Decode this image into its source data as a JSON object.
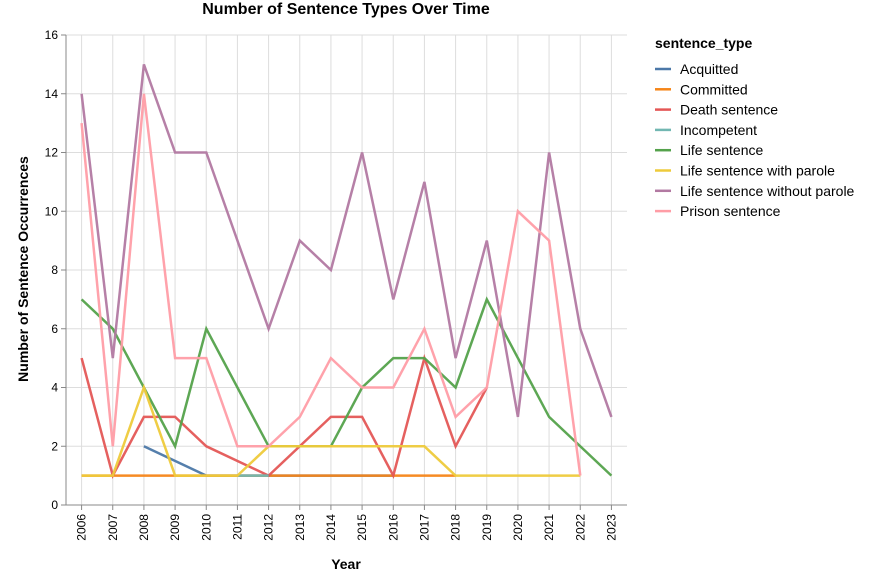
{
  "chart_data": {
    "type": "line",
    "title": "Number of Sentence Types Over Time",
    "xlabel": "Year",
    "ylabel": "Number of Sentence Occurrences",
    "x": [
      2006,
      2007,
      2008,
      2009,
      2010,
      2011,
      2012,
      2013,
      2014,
      2015,
      2016,
      2017,
      2018,
      2019,
      2020,
      2021,
      2022,
      2023
    ],
    "ylim": [
      0,
      16
    ],
    "yticks": [
      0,
      2,
      4,
      6,
      8,
      10,
      12,
      14,
      16
    ],
    "grid": true,
    "legend_title": "sentence_type",
    "legend_position": "right",
    "series": [
      {
        "name": "Acquitted",
        "color": "#4c78a8",
        "points": [
          [
            2008,
            2
          ],
          [
            2010,
            1
          ],
          [
            2011,
            1
          ],
          [
            2012,
            1
          ],
          [
            2013,
            1
          ],
          [
            2014,
            1
          ],
          [
            2015,
            1
          ],
          [
            2016,
            1
          ]
        ]
      },
      {
        "name": "Committed",
        "color": "#f58518",
        "points": [
          [
            2006,
            1
          ],
          [
            2007,
            1
          ],
          [
            2008,
            1
          ],
          [
            2009,
            1
          ],
          [
            2010,
            1
          ],
          [
            2011,
            1
          ],
          [
            2012,
            1
          ],
          [
            2013,
            1
          ],
          [
            2014,
            1
          ],
          [
            2015,
            1
          ],
          [
            2016,
            1
          ],
          [
            2017,
            1
          ],
          [
            2018,
            1
          ]
        ]
      },
      {
        "name": "Death sentence",
        "color": "#e45756",
        "points": [
          [
            2006,
            5
          ],
          [
            2007,
            1
          ],
          [
            2008,
            3
          ],
          [
            2009,
            3
          ],
          [
            2010,
            2
          ],
          [
            2012,
            1
          ],
          [
            2014,
            3
          ],
          [
            2015,
            3
          ],
          [
            2016,
            1
          ],
          [
            2017,
            5
          ],
          [
            2018,
            2
          ],
          [
            2019,
            4
          ]
        ]
      },
      {
        "name": "Incompetent",
        "color": "#72b7b2",
        "points": [
          [
            2011,
            1
          ],
          [
            2012,
            1
          ]
        ]
      },
      {
        "name": "Life sentence",
        "color": "#54a24b",
        "points": [
          [
            2006,
            7
          ],
          [
            2007,
            6
          ],
          [
            2008,
            4
          ],
          [
            2009,
            2
          ],
          [
            2010,
            6
          ],
          [
            2012,
            2
          ],
          [
            2013,
            2
          ],
          [
            2014,
            2
          ],
          [
            2015,
            4
          ],
          [
            2016,
            5
          ],
          [
            2017,
            5
          ],
          [
            2018,
            4
          ],
          [
            2019,
            7
          ],
          [
            2021,
            3
          ],
          [
            2023,
            1
          ]
        ]
      },
      {
        "name": "Life sentence with parole",
        "color": "#eeca3b",
        "points": [
          [
            2006,
            1
          ],
          [
            2007,
            1
          ],
          [
            2008,
            4
          ],
          [
            2009,
            1
          ],
          [
            2010,
            1
          ],
          [
            2011,
            1
          ],
          [
            2012,
            2
          ],
          [
            2013,
            2
          ],
          [
            2014,
            2
          ],
          [
            2015,
            2
          ],
          [
            2016,
            2
          ],
          [
            2017,
            2
          ],
          [
            2018,
            1
          ],
          [
            2019,
            1
          ],
          [
            2020,
            1
          ],
          [
            2021,
            1
          ],
          [
            2022,
            1
          ]
        ]
      },
      {
        "name": "Life sentence without parole",
        "color": "#b279a2",
        "points": [
          [
            2006,
            14
          ],
          [
            2007,
            5
          ],
          [
            2008,
            15
          ],
          [
            2009,
            12
          ],
          [
            2010,
            12
          ],
          [
            2012,
            6
          ],
          [
            2013,
            9
          ],
          [
            2014,
            8
          ],
          [
            2015,
            12
          ],
          [
            2016,
            7
          ],
          [
            2017,
            11
          ],
          [
            2018,
            5
          ],
          [
            2019,
            9
          ],
          [
            2020,
            3
          ],
          [
            2021,
            12
          ],
          [
            2022,
            6
          ],
          [
            2023,
            3
          ]
        ]
      },
      {
        "name": "Prison sentence",
        "color": "#ff9da6",
        "points": [
          [
            2006,
            13
          ],
          [
            2007,
            2
          ],
          [
            2008,
            14
          ],
          [
            2009,
            5
          ],
          [
            2010,
            5
          ],
          [
            2011,
            2
          ],
          [
            2012,
            2
          ],
          [
            2013,
            3
          ],
          [
            2014,
            5
          ],
          [
            2015,
            4
          ],
          [
            2016,
            4
          ],
          [
            2017,
            6
          ],
          [
            2018,
            3
          ],
          [
            2019,
            4
          ],
          [
            2020,
            10
          ],
          [
            2021,
            9
          ],
          [
            2022,
            1
          ]
        ]
      }
    ]
  }
}
